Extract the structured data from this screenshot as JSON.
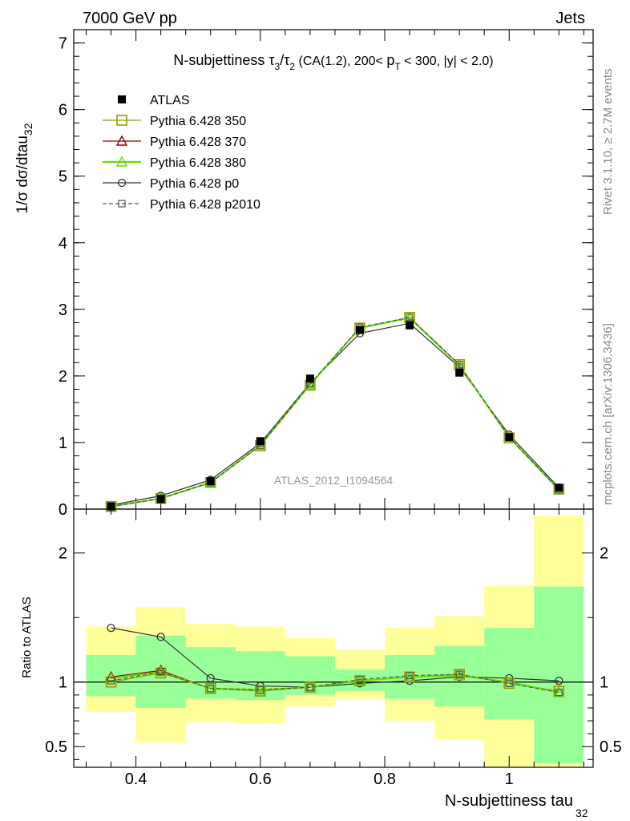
{
  "header": {
    "left_label": "7000 GeV pp",
    "right_label": "Jets"
  },
  "side_labels": {
    "rivet": "Rivet 3.1.10, ≥ 2.7M events",
    "mcplots": "mcplots.cern.ch [arXiv:1306.3436]"
  },
  "chart_data": [
    {
      "type": "line",
      "title": "N-subjettiness τ3/τ2 (CA(1.2), 200< pT < 300, |y| < 2.0)",
      "ylabel": "1/σ dσ/dtau32",
      "watermark": "ATLAS_2012_I1094564",
      "xlim": [
        0.3,
        1.135
      ],
      "ylim": [
        0,
        7.2
      ],
      "y_ticks": [
        0,
        1,
        2,
        3,
        4,
        5,
        6,
        7
      ],
      "x": [
        0.36,
        0.44,
        0.52,
        0.6,
        0.68,
        0.76,
        0.84,
        0.92,
        1.0,
        1.08
      ],
      "legend_position": "top-left",
      "series": [
        {
          "name": "ATLAS",
          "color": "#000000",
          "marker": "filled-square",
          "line": "none",
          "values": [
            0.04,
            0.15,
            0.42,
            1.02,
            1.96,
            2.69,
            2.76,
            2.05,
            1.08,
            0.32
          ]
        },
        {
          "name": "Pythia 6.428 350",
          "color": "#999900",
          "marker": "open-square",
          "line": "solid",
          "values": [
            0.04,
            0.16,
            0.4,
            0.95,
            1.86,
            2.72,
            2.88,
            2.17,
            1.07,
            0.3
          ]
        },
        {
          "name": "Pythia 6.428 370",
          "color": "#990000",
          "marker": "open-triangle",
          "line": "solid",
          "values": [
            0.04,
            0.16,
            0.4,
            0.96,
            1.87,
            2.72,
            2.87,
            2.16,
            1.08,
            0.29
          ]
        },
        {
          "name": "Pythia 6.428 380",
          "color": "#66dd00",
          "marker": "open-triangle",
          "line": "solid",
          "values": [
            0.04,
            0.16,
            0.4,
            0.96,
            1.87,
            2.72,
            2.87,
            2.16,
            1.08,
            0.29
          ]
        },
        {
          "name": "Pythia 6.428 p0",
          "color": "#333333",
          "marker": "open-circle",
          "line": "solid",
          "values": [
            0.06,
            0.2,
            0.44,
            0.99,
            1.89,
            2.64,
            2.79,
            2.13,
            1.12,
            0.32
          ]
        },
        {
          "name": "Pythia 6.428 p2010",
          "color": "#555555",
          "marker": "open-square-small",
          "line": "dashed",
          "values": [
            0.04,
            0.16,
            0.4,
            0.96,
            1.88,
            2.73,
            2.88,
            2.17,
            1.08,
            0.29
          ]
        }
      ]
    },
    {
      "type": "line",
      "ylabel": "Ratio to ATLAS",
      "xlabel": "N-subjettiness tau32",
      "xlim": [
        0.3,
        1.135
      ],
      "ylim": [
        0.34,
        2.34
      ],
      "x_ticks": [
        0.4,
        0.6,
        0.8,
        1.0
      ],
      "x_tick_labels": [
        "0.4",
        "0.6",
        "0.8",
        "1"
      ],
      "y_ticks": [
        0.5,
        1,
        2
      ],
      "y_tick_labels": [
        "0.5",
        "1",
        "2"
      ],
      "bands": [
        {
          "x0": 0.32,
          "x1": 0.4,
          "yellow": [
            0.77,
            1.43
          ],
          "green": [
            0.89,
            1.21
          ]
        },
        {
          "x0": 0.4,
          "x1": 0.48,
          "yellow": [
            0.53,
            1.58
          ],
          "green": [
            0.8,
            1.36
          ]
        },
        {
          "x0": 0.48,
          "x1": 0.56,
          "yellow": [
            0.69,
            1.45
          ],
          "green": [
            0.87,
            1.27
          ]
        },
        {
          "x0": 0.56,
          "x1": 0.64,
          "yellow": [
            0.68,
            1.43
          ],
          "green": [
            0.86,
            1.24
          ]
        },
        {
          "x0": 0.64,
          "x1": 0.72,
          "yellow": [
            0.81,
            1.34
          ],
          "green": [
            0.9,
            1.2
          ]
        },
        {
          "x0": 0.72,
          "x1": 0.8,
          "yellow": [
            0.87,
            1.25
          ],
          "green": [
            0.93,
            1.1
          ]
        },
        {
          "x0": 0.8,
          "x1": 0.88,
          "yellow": [
            0.7,
            1.42
          ],
          "green": [
            0.87,
            1.21
          ]
        },
        {
          "x0": 0.88,
          "x1": 0.96,
          "yellow": [
            0.55,
            1.51
          ],
          "green": [
            0.81,
            1.28
          ]
        },
        {
          "x0": 0.96,
          "x1": 1.04,
          "yellow": [
            0.34,
            1.75
          ],
          "green": [
            0.71,
            1.42
          ]
        },
        {
          "x0": 1.04,
          "x1": 1.12,
          "yellow": [
            0.34,
            2.29
          ],
          "green": [
            0.37,
            1.74
          ]
        }
      ],
      "x": [
        0.36,
        0.44,
        0.52,
        0.6,
        0.68,
        0.76,
        0.84,
        0.92,
        1.0,
        1.08
      ],
      "series": [
        {
          "name": "Pythia 6.428 350",
          "color": "#999900",
          "marker": "open-square",
          "line": "solid",
          "values": [
            1.0,
            1.07,
            0.95,
            0.93,
            0.96,
            1.01,
            1.04,
            1.06,
            0.99,
            0.93
          ]
        },
        {
          "name": "Pythia 6.428 370",
          "color": "#990000",
          "marker": "open-triangle",
          "line": "solid",
          "values": [
            1.04,
            1.09,
            0.95,
            0.94,
            0.96,
            1.01,
            1.04,
            1.05,
            1.0,
            0.92
          ]
        },
        {
          "name": "Pythia 6.428 380",
          "color": "#66dd00",
          "marker": "open-triangle",
          "line": "solid",
          "values": [
            1.03,
            1.08,
            0.95,
            0.94,
            0.96,
            1.01,
            1.04,
            1.05,
            1.0,
            0.92
          ]
        },
        {
          "name": "Pythia 6.428 p0",
          "color": "#333333",
          "marker": "open-circle",
          "line": "solid",
          "values": [
            1.42,
            1.35,
            1.03,
            0.97,
            0.96,
            0.99,
            1.01,
            1.04,
            1.03,
            1.01
          ]
        },
        {
          "name": "Pythia 6.428 p2010",
          "color": "#555555",
          "marker": "open-square-small",
          "line": "dashed",
          "values": [
            1.01,
            1.08,
            0.95,
            0.94,
            0.96,
            1.02,
            1.05,
            1.06,
            0.99,
            0.92
          ]
        }
      ]
    }
  ]
}
